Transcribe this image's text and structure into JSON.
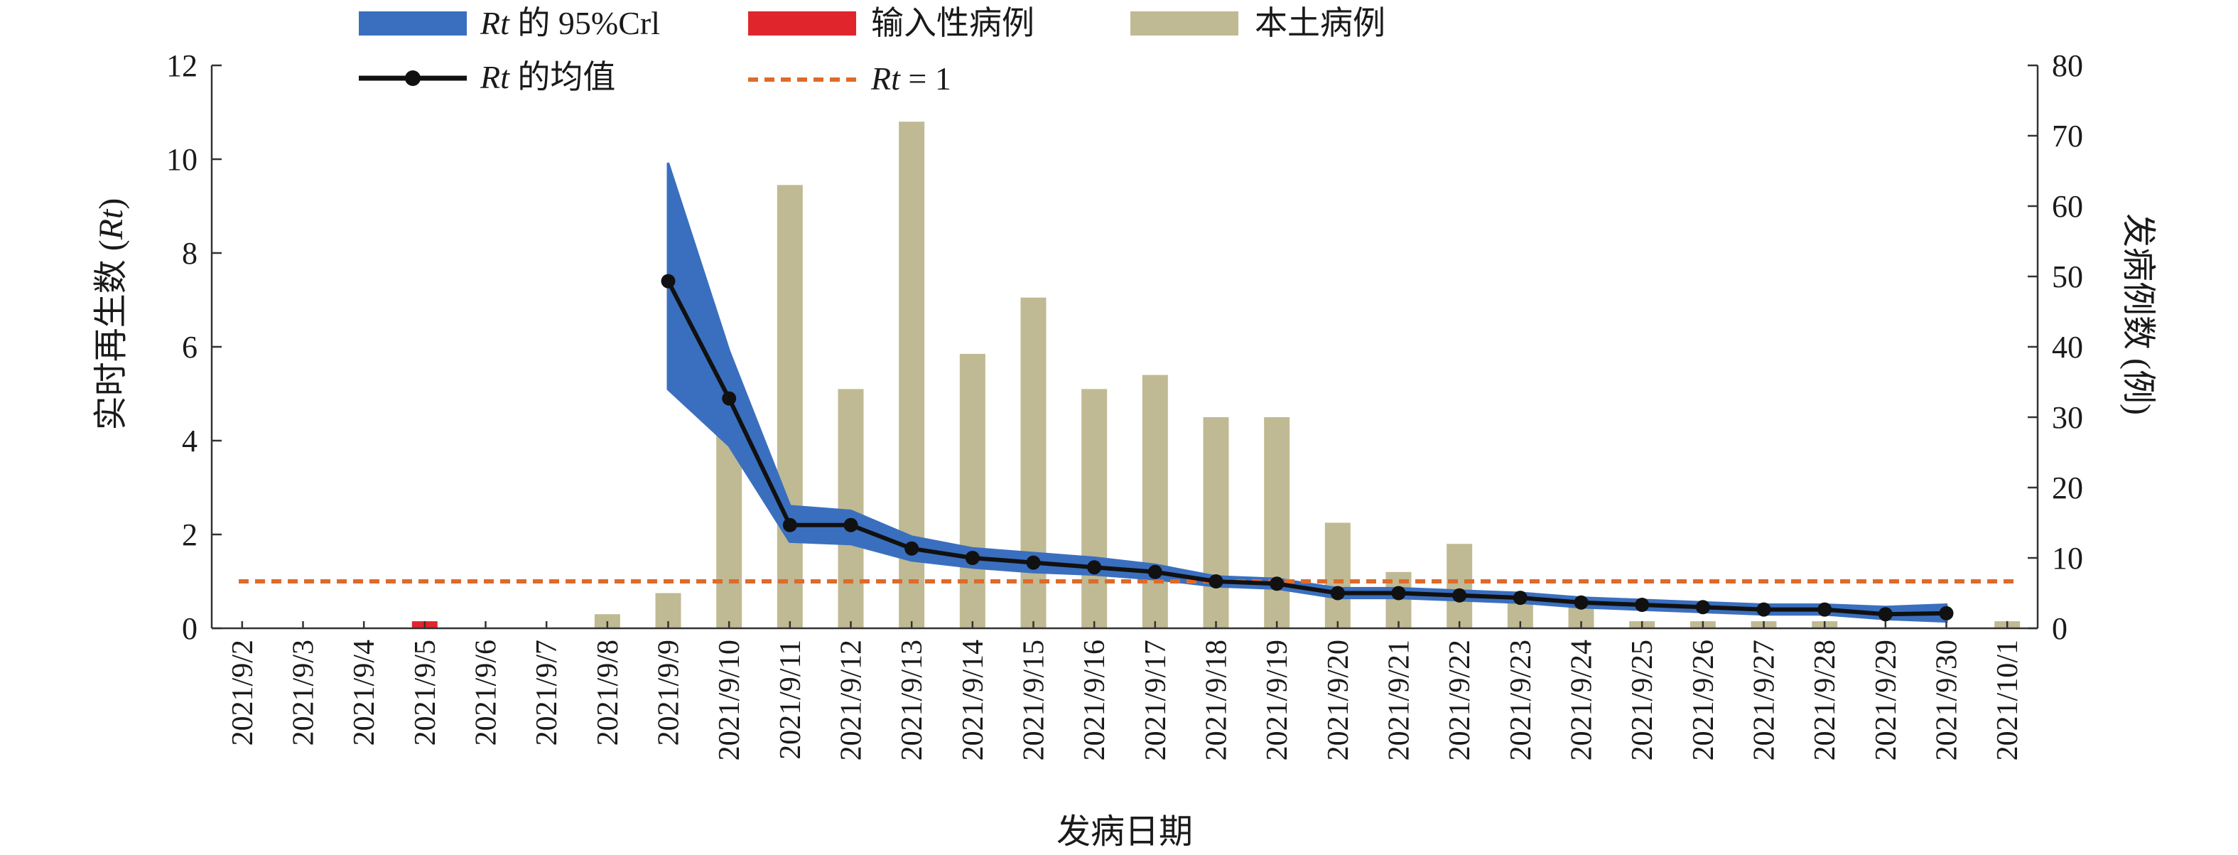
{
  "chart_data": {
    "type": "bar",
    "categories": [
      "2021/9/2",
      "2021/9/3",
      "2021/9/4",
      "2021/9/5",
      "2021/9/6",
      "2021/9/7",
      "2021/9/8",
      "2021/9/9",
      "2021/9/10",
      "2021/9/11",
      "2021/9/12",
      "2021/9/13",
      "2021/9/14",
      "2021/9/15",
      "2021/9/16",
      "2021/9/17",
      "2021/9/18",
      "2021/9/19",
      "2021/9/20",
      "2021/9/21",
      "2021/9/22",
      "2021/9/23",
      "2021/9/24",
      "2021/9/25",
      "2021/9/26",
      "2021/9/27",
      "2021/9/28",
      "2021/9/29",
      "2021/9/30",
      "2021/10/1"
    ],
    "xlabel": "发病日期",
    "ylabel_left": "实时再生数 (Rt)",
    "ylabel_right": "发病例数 (例)",
    "ylim_left": [
      0,
      12
    ],
    "ylim_right": [
      0,
      80
    ],
    "yticks_left": [
      "0",
      "2",
      "4",
      "6",
      "8",
      "10",
      "12"
    ],
    "yticks_right": [
      "0",
      "10",
      "20",
      "30",
      "40",
      "50",
      "60",
      "70",
      "80"
    ],
    "legend_position": "top-left",
    "grid": false,
    "colors": {
      "band": "#3a6fbf",
      "imported": "#e0262c",
      "local": "#bfba93",
      "mean": "#111111",
      "threshold": "#e06a2a"
    },
    "legend": {
      "band_prefix": "Rt",
      "band_suffix": " 的 95%Crl",
      "imported": "输入性病例",
      "local": "本土病例",
      "mean_prefix": "Rt",
      "mean_suffix": " 的均值",
      "threshold_prefix": "Rt",
      "threshold_suffix": " = 1"
    },
    "series": [
      {
        "name": "本土病例",
        "axis": "right",
        "type": "bar",
        "values": [
          0,
          0,
          0,
          0,
          0,
          0,
          2,
          5,
          29,
          63,
          34,
          72,
          39,
          47,
          34,
          36,
          30,
          30,
          15,
          8,
          12,
          4,
          3,
          1,
          1,
          1,
          1,
          0,
          0,
          1
        ]
      },
      {
        "name": "输入性病例",
        "axis": "right",
        "type": "bar",
        "values": [
          0,
          0,
          0,
          1,
          0,
          0,
          0,
          0,
          0,
          0,
          0,
          0,
          0,
          0,
          0,
          0,
          0,
          0,
          0,
          0,
          0,
          0,
          0,
          0,
          0,
          0,
          0,
          0,
          0,
          0
        ]
      },
      {
        "name": "Rt 的均值",
        "axis": "left",
        "type": "line",
        "values": [
          null,
          null,
          null,
          null,
          null,
          null,
          null,
          7.4,
          4.9,
          2.2,
          2.2,
          1.7,
          1.5,
          1.4,
          1.3,
          1.2,
          1.0,
          0.95,
          0.75,
          0.75,
          0.7,
          0.65,
          0.55,
          0.5,
          0.45,
          0.4,
          0.4,
          0.3,
          0.32,
          null
        ]
      },
      {
        "name": "Rt 的 95%Crl",
        "axis": "left",
        "type": "band",
        "lower": [
          null,
          null,
          null,
          null,
          null,
          null,
          null,
          5.1,
          3.9,
          1.85,
          1.8,
          1.45,
          1.3,
          1.2,
          1.15,
          1.05,
          0.9,
          0.85,
          0.65,
          0.65,
          0.6,
          0.55,
          0.45,
          0.4,
          0.35,
          0.3,
          0.3,
          0.2,
          0.15,
          null
        ],
        "upper": [
          null,
          null,
          null,
          null,
          null,
          null,
          null,
          9.9,
          5.9,
          2.6,
          2.5,
          1.95,
          1.7,
          1.6,
          1.5,
          1.35,
          1.1,
          1.05,
          0.85,
          0.85,
          0.8,
          0.75,
          0.65,
          0.6,
          0.55,
          0.5,
          0.5,
          0.45,
          0.5,
          null
        ]
      },
      {
        "name": "Rt = 1",
        "axis": "left",
        "type": "hline",
        "value": 1
      }
    ]
  }
}
